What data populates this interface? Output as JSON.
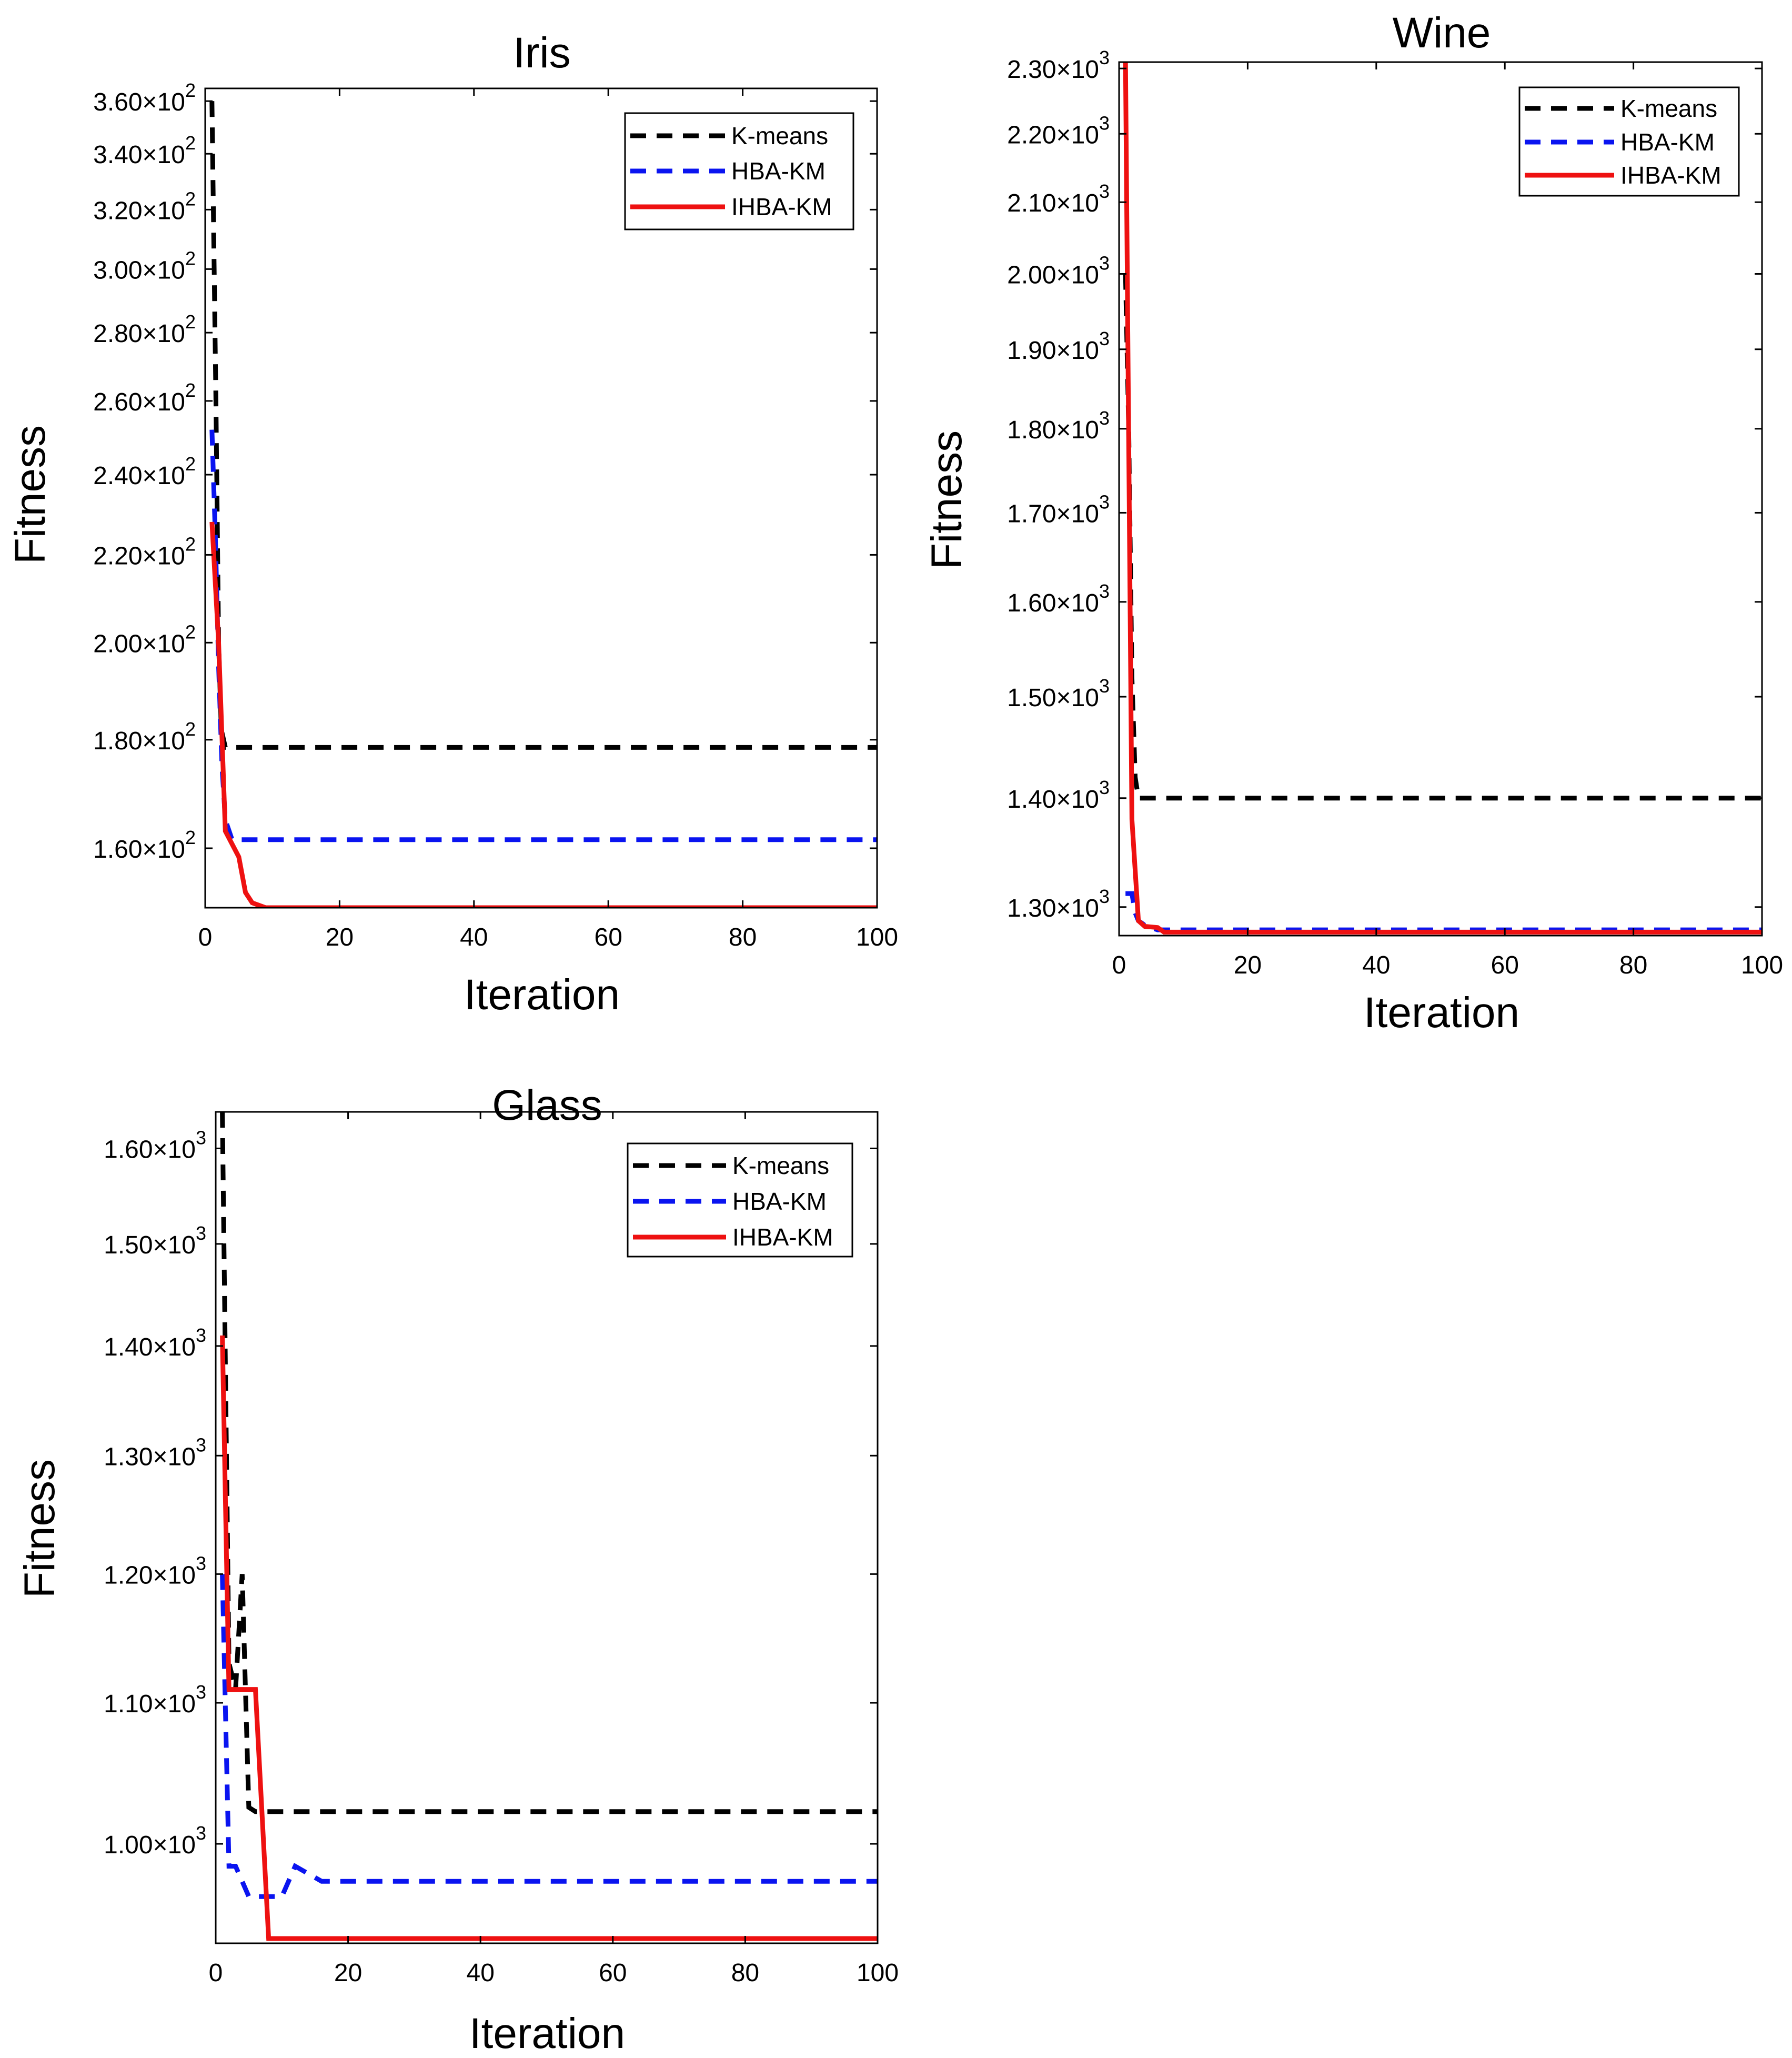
{
  "figure": {
    "series_names": [
      "K-means",
      "HBA-KM",
      "IHBA-KM"
    ],
    "colors": {
      "kmeans": "#000000",
      "hbakm": "#0a14f0",
      "ihbakm": "#ee1111"
    }
  },
  "chart_data": [
    {
      "type": "line",
      "title": "Iris",
      "xlabel": "Iteration",
      "ylabel": "Fitness",
      "xlim": [
        0,
        100
      ],
      "ylim": [
        150,
        365
      ],
      "yscale": "log",
      "xticks": [
        0,
        20,
        40,
        60,
        80,
        100
      ],
      "xtick_labels": [
        "0",
        "20",
        "40",
        "60",
        "80",
        "100"
      ],
      "yticks": [
        160,
        180,
        200,
        220,
        240,
        260,
        280,
        300,
        320,
        340,
        360
      ],
      "ytick_mantissas": [
        "1.60",
        "1.80",
        "2.00",
        "2.20",
        "2.40",
        "2.60",
        "2.80",
        "3.00",
        "3.20",
        "3.40",
        "3.60"
      ],
      "ytick_exponent": "2",
      "legend": {
        "location": "top-right",
        "entries": [
          "K-means",
          "HBA-KM",
          "IHBA-KM"
        ]
      },
      "series": [
        {
          "name": "K-means",
          "x": [
            1,
            1.6,
            2,
            2.4,
            3,
            100
          ],
          "values": [
            360,
            260,
            200,
            182,
            178.5,
            178.5
          ]
        },
        {
          "name": "HBA-KM",
          "x": [
            1,
            1.5,
            2,
            2.5,
            3,
            4,
            100
          ],
          "values": [
            252,
            225,
            195,
            175,
            165,
            161.5,
            161.5
          ]
        },
        {
          "name": "IHBA-KM",
          "x": [
            1,
            2,
            3,
            5,
            6,
            7,
            9,
            100
          ],
          "values": [
            228,
            200,
            163,
            158.5,
            152.5,
            150.8,
            150,
            150
          ]
        }
      ]
    },
    {
      "type": "line",
      "title": "Wine",
      "xlabel": "Iteration",
      "ylabel": "Fitness",
      "xlim": [
        0,
        100
      ],
      "ylim": [
        1275,
        2310
      ],
      "yscale": "log",
      "xticks": [
        0,
        20,
        40,
        60,
        80,
        100
      ],
      "xtick_labels": [
        "0",
        "20",
        "40",
        "60",
        "80",
        "100"
      ],
      "yticks": [
        1300,
        1400,
        1500,
        1600,
        1700,
        1800,
        1900,
        2000,
        2100,
        2200,
        2300
      ],
      "ytick_mantissas": [
        "1.30",
        "1.40",
        "1.50",
        "1.60",
        "1.70",
        "1.80",
        "1.90",
        "2.00",
        "2.10",
        "2.20",
        "2.30"
      ],
      "ytick_exponent": "3",
      "legend": {
        "location": "top-right",
        "entries": [
          "K-means",
          "HBA-KM",
          "IHBA-KM"
        ]
      },
      "series": [
        {
          "name": "K-means",
          "x": [
            1,
            1.5,
            2,
            2.5,
            3,
            100
          ],
          "values": [
            2000,
            1800,
            1520,
            1420,
            1400,
            1400
          ]
        },
        {
          "name": "HBA-KM",
          "x": [
            1,
            2,
            2.5,
            3,
            4,
            6,
            100
          ],
          "values": [
            1312,
            1312,
            1295,
            1288,
            1284,
            1280,
            1280
          ]
        },
        {
          "name": "IHBA-KM",
          "x": [
            1,
            2,
            3,
            4,
            6,
            7,
            100
          ],
          "values": [
            2310,
            1380,
            1288,
            1283,
            1282,
            1278,
            1278
          ]
        }
      ]
    },
    {
      "type": "line",
      "title": "Glass",
      "xlabel": "Iteration",
      "ylabel": "Fitness",
      "xlim": [
        0,
        100
      ],
      "ylim": [
        935,
        1640
      ],
      "yscale": "log",
      "xticks": [
        0,
        20,
        40,
        60,
        80,
        100
      ],
      "xtick_labels": [
        "0",
        "20",
        "40",
        "60",
        "80",
        "100"
      ],
      "yticks": [
        1000,
        1100,
        1200,
        1300,
        1400,
        1500,
        1600
      ],
      "ytick_mantissas": [
        "1.00",
        "1.10",
        "1.20",
        "1.30",
        "1.40",
        "1.50",
        "1.60"
      ],
      "ytick_exponent": "3",
      "legend": {
        "location": "top-right",
        "entries": [
          "K-means",
          "HBA-KM",
          "IHBA-KM"
        ]
      },
      "series": [
        {
          "name": "K-means",
          "x": [
            1,
            2,
            3,
            4,
            5,
            6,
            7,
            100
          ],
          "values": [
            1640,
            1130,
            1110,
            1200,
            1025,
            1022,
            1022,
            1022
          ]
        },
        {
          "name": "HBA-KM",
          "x": [
            1,
            2,
            3,
            4,
            5,
            7,
            10,
            12,
            14,
            16,
            18,
            100
          ],
          "values": [
            1200,
            985,
            985,
            975,
            965,
            965,
            965,
            985,
            980,
            975,
            975,
            975
          ]
        },
        {
          "name": "IHBA-KM",
          "x": [
            1,
            2,
            3,
            6,
            8,
            9,
            100
          ],
          "values": [
            1410,
            1110,
            1110,
            1110,
            938,
            938,
            938
          ]
        }
      ]
    }
  ]
}
